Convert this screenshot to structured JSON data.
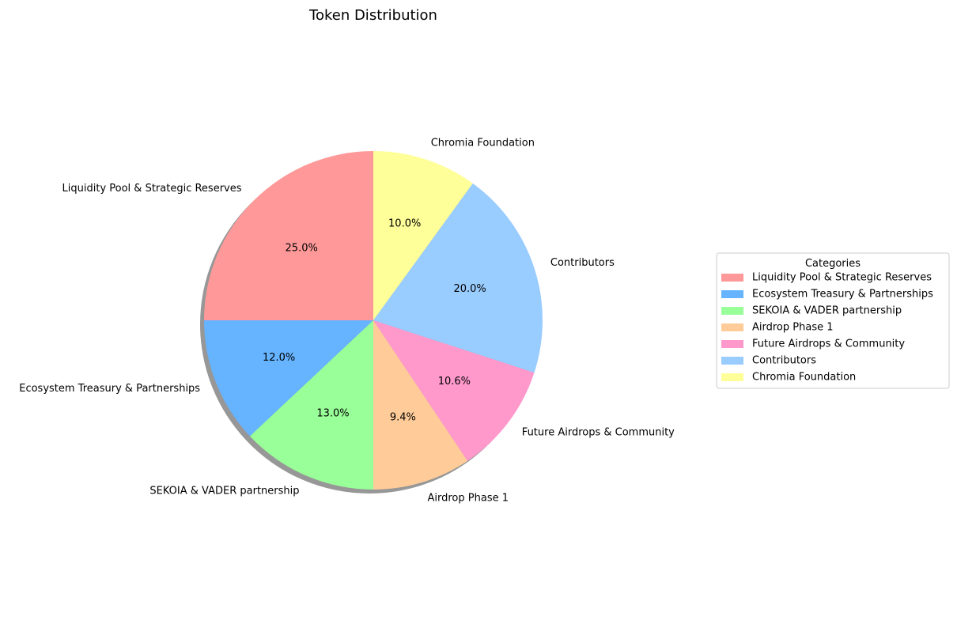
{
  "chart_data": {
    "type": "pie",
    "title": "Token Distribution",
    "categories": [
      "Liquidity Pool & Strategic Reserves",
      "Ecosystem Treasury & Partnerships",
      "SEKOIA & VADER partnership",
      "Airdrop Phase 1",
      "Future Airdrops & Community",
      "Contributors",
      "Chromia Foundation"
    ],
    "values": [
      25.0,
      12.0,
      13.0,
      9.4,
      10.6,
      20.0,
      10.0
    ],
    "percent_labels": [
      "25.0%",
      "12.0%",
      "13.0%",
      "9.4%",
      "10.6%",
      "20.0%",
      "10.0%"
    ],
    "colors": [
      "#ff9999",
      "#66b3ff",
      "#99ff99",
      "#ffcc99",
      "#ff99cc",
      "#99ccff",
      "#ffff99"
    ],
    "start_angle_deg": 90,
    "direction": "counterclockwise",
    "shadow": true,
    "legend": {
      "title": "Categories",
      "placement": "right"
    }
  }
}
